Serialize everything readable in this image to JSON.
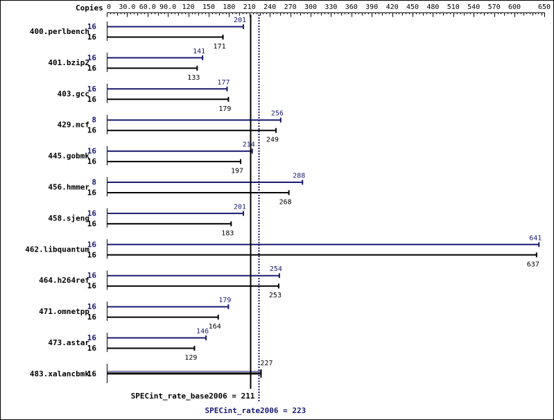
{
  "chart_data": {
    "type": "bar",
    "orientation": "horizontal",
    "axis": {
      "label": "Copies",
      "min": 0,
      "max": 650,
      "ticks": [
        0,
        30,
        60,
        90,
        120,
        150,
        180,
        210,
        240,
        270,
        300,
        330,
        360,
        390,
        420,
        450,
        480,
        510,
        540,
        570,
        600,
        650
      ],
      "tick_labels": [
        "0",
        "30.0",
        "60.0",
        "90.0",
        "120",
        "150",
        "180",
        "210",
        "240",
        "270",
        "300",
        "330",
        "360",
        "390",
        "420",
        "450",
        "480",
        "510",
        "540",
        "570",
        "600",
        "650"
      ]
    },
    "benchmarks": [
      {
        "name": "400.perlbench",
        "peak_copies": "16",
        "peak": 201,
        "base_copies": "16",
        "base": 171
      },
      {
        "name": "401.bzip2",
        "peak_copies": "16",
        "peak": 141,
        "base_copies": "16",
        "base": 133
      },
      {
        "name": "403.gcc",
        "peak_copies": "16",
        "peak": 177,
        "base_copies": "16",
        "base": 179
      },
      {
        "name": "429.mcf",
        "peak_copies": "8",
        "peak": 256,
        "base_copies": "16",
        "base": 249
      },
      {
        "name": "445.gobmk",
        "peak_copies": "16",
        "peak": 214,
        "base_copies": "16",
        "base": 197
      },
      {
        "name": "456.hmmer",
        "peak_copies": "8",
        "peak": 288,
        "base_copies": "16",
        "base": 268
      },
      {
        "name": "458.sjeng",
        "peak_copies": "16",
        "peak": 201,
        "base_copies": "16",
        "base": 183
      },
      {
        "name": "462.libquantum",
        "peak_copies": "16",
        "peak": 641,
        "base_copies": "16",
        "base": 637
      },
      {
        "name": "464.h264ref",
        "peak_copies": "16",
        "peak": 254,
        "base_copies": "16",
        "base": 253
      },
      {
        "name": "471.omnetpp",
        "peak_copies": "16",
        "peak": 179,
        "base_copies": "16",
        "base": 164
      },
      {
        "name": "473.astar",
        "peak_copies": "16",
        "peak": 146,
        "base_copies": "16",
        "base": 129
      },
      {
        "name": "483.xalancbmk",
        "combined": true,
        "copies": "16",
        "value": 227
      }
    ],
    "summary": {
      "base_label": "SPECint_rate_base2006 = 211",
      "base_value": 211,
      "peak_label": "SPECint_rate2006 = 223",
      "peak_value": 223
    },
    "colors": {
      "peak": "#191970",
      "base": "#000000"
    }
  }
}
